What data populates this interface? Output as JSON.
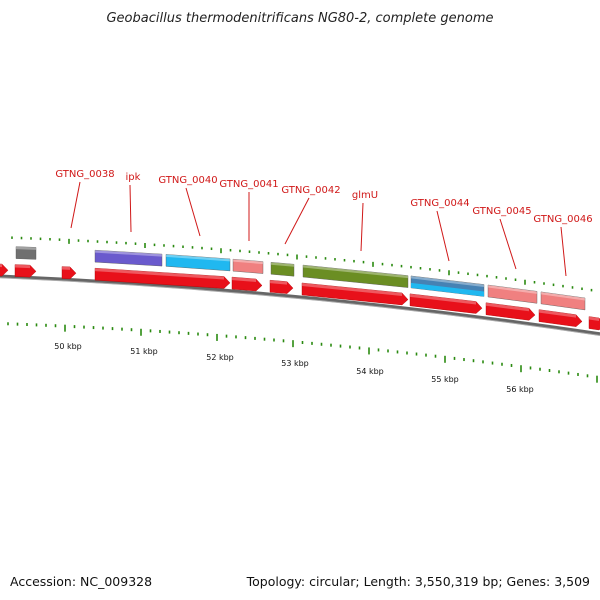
{
  "title": "Geobacillus thermodenitrificans NG80-2, complete genome",
  "footer": {
    "accession": "Accession: NC_009328",
    "summary": "Topology: circular; Length: 3,550,319 bp; Genes: 3,509"
  },
  "colors": {
    "forward_gene": "#e8101a",
    "outer_gray": "#707070",
    "purple": "#6a5acd",
    "cyan": "#20b8f0",
    "salmon": "#f08080",
    "olive": "#6b8e23",
    "steel": "#4682b4",
    "label": "#d01818",
    "tick_green": "#2a8a10"
  },
  "gene_labels": [
    {
      "text": "GTNG_0038",
      "id": "gtng-0038"
    },
    {
      "text": "ipk",
      "id": "ipk"
    },
    {
      "text": "GTNG_0040",
      "id": "gtng-0040"
    },
    {
      "text": "GTNG_0041",
      "id": "gtng-0041"
    },
    {
      "text": "GTNG_0042",
      "id": "gtng-0042"
    },
    {
      "text": "glmU",
      "id": "glmu"
    },
    {
      "text": "GTNG_0044",
      "id": "gtng-0044"
    },
    {
      "text": "GTNG_0045",
      "id": "gtng-0045"
    },
    {
      "text": "GTNG_0046",
      "id": "gtng-0046"
    }
  ],
  "kbp_ticks": [
    "50 kbp",
    "51 kbp",
    "52 kbp",
    "53 kbp",
    "54 kbp",
    "55 kbp",
    "56 kbp"
  ]
}
